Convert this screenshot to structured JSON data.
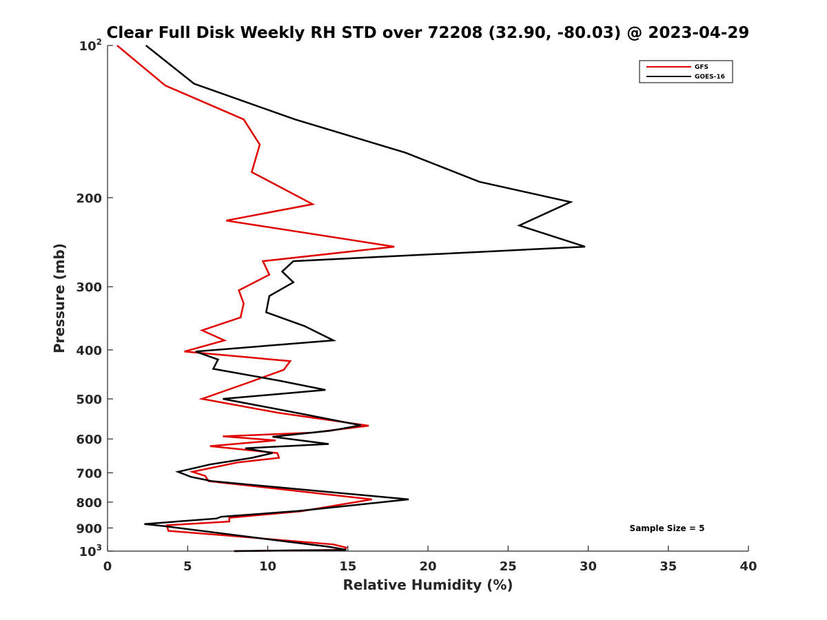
{
  "chart_data": {
    "type": "line",
    "title": "Clear Full Disk Weekly RH STD over 72208 (32.90, -80.03) @ 2023-04-29",
    "xlabel": "Relative Humidity (%)",
    "ylabel": "Pressure (mb)",
    "xlim": [
      0,
      40
    ],
    "ylim": [
      100,
      1000
    ],
    "y_scale": "log",
    "y_reversed": true,
    "grid": false,
    "legend_position": "top-right",
    "x_ticks": [
      "0",
      "5",
      "10",
      "15",
      "20",
      "25",
      "30",
      "35",
      "40"
    ],
    "x_tick_values": [
      0,
      5,
      10,
      15,
      20,
      25,
      30,
      35,
      40
    ],
    "y_ticks": [
      {
        "value": 100,
        "base": "10",
        "exp": "2"
      },
      {
        "value": 200,
        "label": "200"
      },
      {
        "value": 300,
        "label": "300"
      },
      {
        "value": 400,
        "label": "400"
      },
      {
        "value": 500,
        "label": "500"
      },
      {
        "value": 600,
        "label": "600"
      },
      {
        "value": 700,
        "label": "700"
      },
      {
        "value": 800,
        "label": "800"
      },
      {
        "value": 900,
        "label": "900"
      },
      {
        "value": 1000,
        "base": "10",
        "exp": "3"
      }
    ],
    "series": [
      {
        "name": "GFS",
        "color": "#e00000",
        "points": [
          [
            0.6,
            100
          ],
          [
            3.6,
            120
          ],
          [
            8.5,
            140
          ],
          [
            9.5,
            157
          ],
          [
            9.0,
            178
          ],
          [
            12.8,
            206
          ],
          [
            7.4,
            222
          ],
          [
            17.9,
            250
          ],
          [
            9.7,
            267
          ],
          [
            10.1,
            284
          ],
          [
            8.2,
            305
          ],
          [
            8.5,
            324
          ],
          [
            8.3,
            345
          ],
          [
            5.9,
            366
          ],
          [
            7.3,
            383
          ],
          [
            4.8,
            403
          ],
          [
            11.4,
            421
          ],
          [
            11.0,
            438
          ],
          [
            8.9,
            463
          ],
          [
            5.9,
            500
          ],
          [
            10.7,
            533
          ],
          [
            16.3,
            565
          ],
          [
            12.8,
            583
          ],
          [
            7.2,
            593
          ],
          [
            10.5,
            604
          ],
          [
            6.4,
            620
          ],
          [
            10.6,
            640
          ],
          [
            10.7,
            654
          ],
          [
            8.1,
            668
          ],
          [
            5.3,
            697
          ],
          [
            6.1,
            710
          ],
          [
            6.3,
            727
          ],
          [
            16.5,
            790
          ],
          [
            12.1,
            834
          ],
          [
            7.6,
            859
          ],
          [
            7.6,
            874
          ],
          [
            3.7,
            889
          ],
          [
            3.8,
            912
          ],
          [
            7.2,
            930
          ],
          [
            14.1,
            970
          ],
          [
            14.9,
            984
          ],
          [
            14.8,
            994
          ],
          [
            7.9,
            1000
          ]
        ]
      },
      {
        "name": "GOES-16",
        "color": "#000000",
        "points": [
          [
            2.4,
            100
          ],
          [
            5.4,
            119
          ],
          [
            11.7,
            140
          ],
          [
            18.6,
            163
          ],
          [
            23.2,
            186
          ],
          [
            28.9,
            204
          ],
          [
            25.7,
            227
          ],
          [
            29.8,
            250
          ],
          [
            11.6,
            267
          ],
          [
            10.9,
            280
          ],
          [
            11.6,
            294
          ],
          [
            10.1,
            313
          ],
          [
            9.9,
            337
          ],
          [
            12.3,
            359
          ],
          [
            14.1,
            383
          ],
          [
            5.5,
            403
          ],
          [
            6.9,
            418
          ],
          [
            6.6,
            436
          ],
          [
            10.7,
            460
          ],
          [
            13.6,
            480
          ],
          [
            7.2,
            500
          ],
          [
            11.3,
            529
          ],
          [
            15.8,
            564
          ],
          [
            13.9,
            578
          ],
          [
            10.3,
            594
          ],
          [
            13.8,
            614
          ],
          [
            8.6,
            626
          ],
          [
            10.3,
            640
          ],
          [
            9.0,
            654
          ],
          [
            6.4,
            674
          ],
          [
            4.4,
            697
          ],
          [
            5.2,
            713
          ],
          [
            6.5,
            727
          ],
          [
            18.8,
            790
          ],
          [
            11.9,
            833
          ],
          [
            7.1,
            855
          ],
          [
            6.8,
            862
          ],
          [
            2.3,
            884
          ],
          [
            3.6,
            893
          ],
          [
            10.3,
            950
          ],
          [
            13.8,
            980
          ],
          [
            14.9,
            994
          ],
          [
            7.9,
            1000
          ]
        ]
      }
    ],
    "annotation": "Sample Size = 5"
  }
}
